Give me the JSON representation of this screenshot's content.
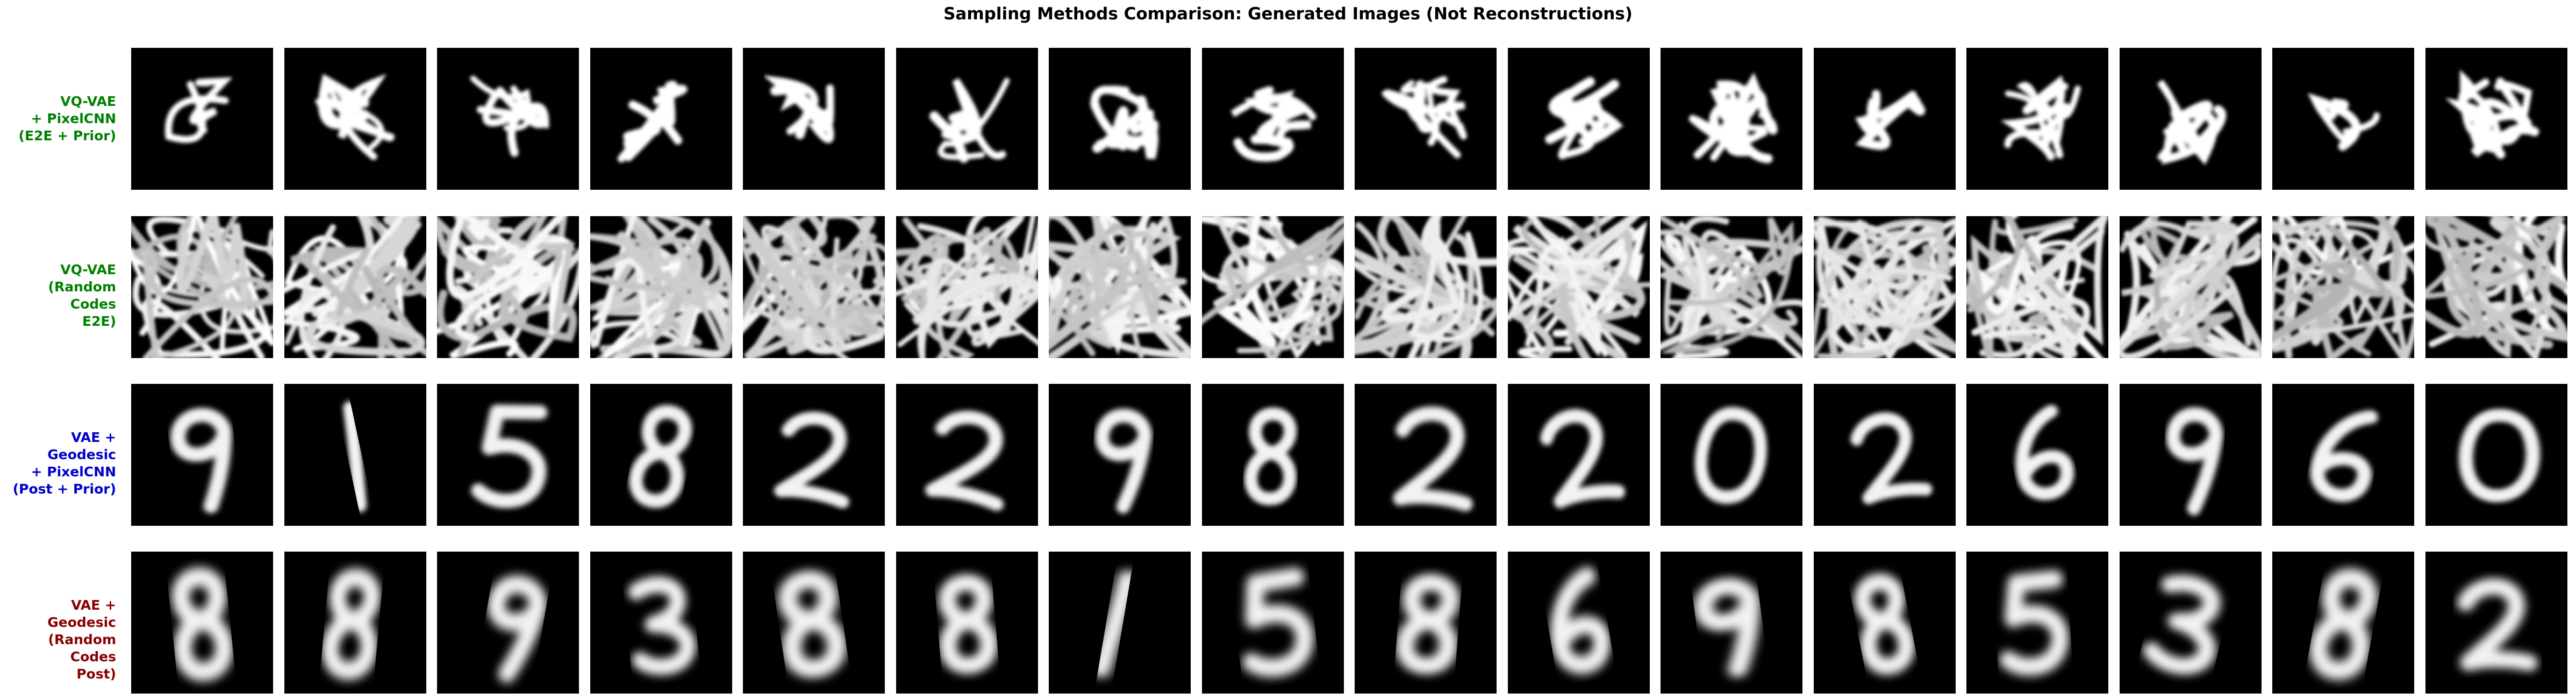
{
  "chart_data": {
    "type": "image-grid",
    "title": "Sampling Methods Comparison: Generated Images (Not Reconstructions)",
    "columns_per_row": 16,
    "rows": [
      {
        "label": "VQ-VAE\n+ PixelCNN\n(E2E + Prior)",
        "color": "#008000",
        "style": "scribble",
        "seed": 11
      },
      {
        "label": "VQ-VAE\n(Random Codes\nE2E)",
        "color": "#008000",
        "style": "texture",
        "seed": 37
      },
      {
        "label": "VAE + Geodesic\n+ PixelCNN\n(Post + Prior)",
        "color": "#0000cc",
        "style": "digit-sharp",
        "seed": 73,
        "digits": [
          "9",
          "1",
          "5",
          "8",
          "2",
          "2",
          "9",
          "8",
          "2",
          "2",
          "0",
          "2",
          "6",
          "9",
          "6",
          "0"
        ]
      },
      {
        "label": "VAE + Geodesic\n(Random Codes\nPost)",
        "color": "#8b0000",
        "style": "digit-blurry",
        "seed": 101,
        "digits": [
          "8",
          "8",
          "9",
          "3",
          "8",
          "8",
          "1",
          "5",
          "8",
          "6",
          "9",
          "8",
          "5",
          "3",
          "8",
          "2"
        ]
      }
    ]
  }
}
